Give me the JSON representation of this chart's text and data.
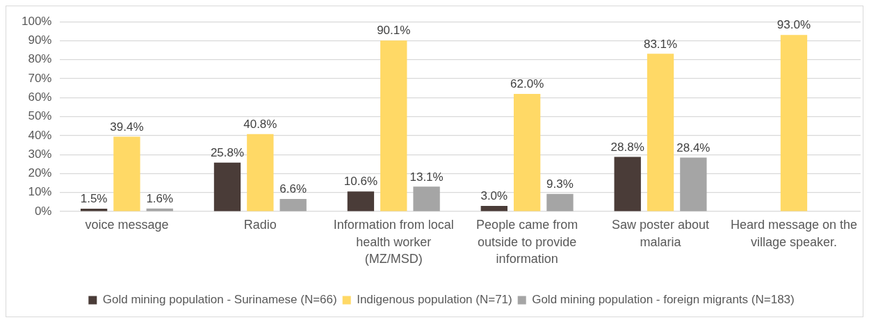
{
  "chart_data": {
    "type": "bar",
    "categories": [
      "voice message",
      "Radio",
      "Information from local health worker (MZ/MSD)",
      "People came from outside to provide information",
      "Saw poster about malaria",
      "Heard message on the village speaker."
    ],
    "series": [
      {
        "name": "Gold mining population - Surinamese (N=66)",
        "color": "#4a3c38",
        "values": [
          1.5,
          25.8,
          10.6,
          3.0,
          28.8,
          null
        ],
        "value_labels": [
          "1.5%",
          "25.8%",
          "10.6%",
          "3.0%",
          "28.8%",
          null
        ]
      },
      {
        "name": "Indigenous population (N=71)",
        "color": "#ffd966",
        "values": [
          39.4,
          40.8,
          90.1,
          62.0,
          83.1,
          93.0
        ],
        "value_labels": [
          "39.4%",
          "40.8%",
          "90.1%",
          "62.0%",
          "83.1%",
          "93.0%"
        ]
      },
      {
        "name": "Gold mining population - foreign migrants (N=183)",
        "color": "#a5a5a5",
        "values": [
          1.6,
          6.6,
          13.1,
          9.3,
          28.4,
          null
        ],
        "value_labels": [
          "1.6%",
          "6.6%",
          "13.1%",
          "9.3%",
          "28.4%",
          null
        ]
      }
    ],
    "ylim": [
      0,
      100
    ],
    "yticks": [
      {
        "value": 0,
        "label": "0%"
      },
      {
        "value": 10,
        "label": "10%"
      },
      {
        "value": 20,
        "label": "20%"
      },
      {
        "value": 30,
        "label": "30%"
      },
      {
        "value": 40,
        "label": "40%"
      },
      {
        "value": 50,
        "label": "50%"
      },
      {
        "value": 60,
        "label": "60%"
      },
      {
        "value": 70,
        "label": "70%"
      },
      {
        "value": 80,
        "label": "80%"
      },
      {
        "value": 90,
        "label": "90%"
      },
      {
        "value": 100,
        "label": "100%"
      }
    ],
    "grid": "y",
    "legend": "bottom"
  }
}
